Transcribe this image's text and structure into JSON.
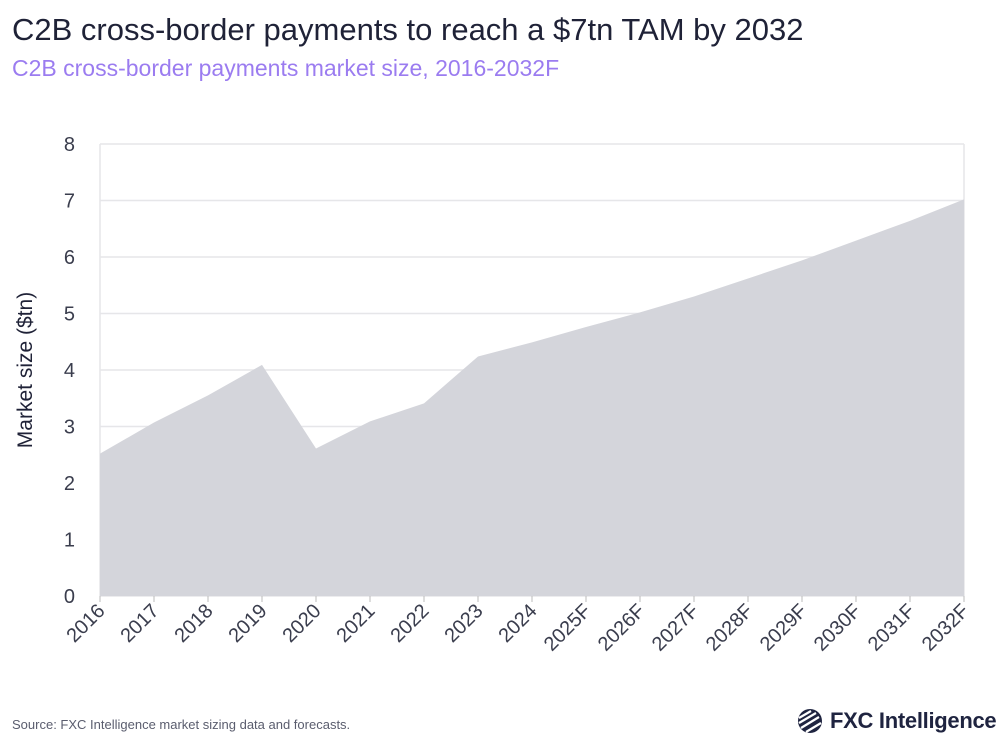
{
  "title": "C2B cross-border payments to reach a $7tn TAM by 2032",
  "subtitle": "C2B cross-border payments market size, 2016-2032F",
  "source": "Source: FXC Intelligence market sizing data and forecasts.",
  "logo_text": "FXC Intelligence",
  "colors": {
    "area": "#d4d5db",
    "subtitle": "#9b7cf0",
    "grid": "#e6e6e9"
  },
  "chart_data": {
    "type": "area",
    "title": "C2B cross-border payments market size, 2016-2032F",
    "xlabel": "",
    "ylabel": "Market size ($tn)",
    "ylim": [
      0,
      8
    ],
    "yticks": [
      0,
      1,
      2,
      3,
      4,
      5,
      6,
      7,
      8
    ],
    "grid": true,
    "categories": [
      "2016",
      "2017",
      "2018",
      "2019",
      "2020",
      "2021",
      "2022",
      "2023",
      "2024",
      "2025F",
      "2026F",
      "2027F",
      "2028F",
      "2029F",
      "2030F",
      "2031F",
      "2032F"
    ],
    "values": [
      2.52,
      3.07,
      3.55,
      4.09,
      2.61,
      3.09,
      3.41,
      4.24,
      4.49,
      4.76,
      5.02,
      5.3,
      5.62,
      5.94,
      6.29,
      6.64,
      7.02
    ]
  }
}
